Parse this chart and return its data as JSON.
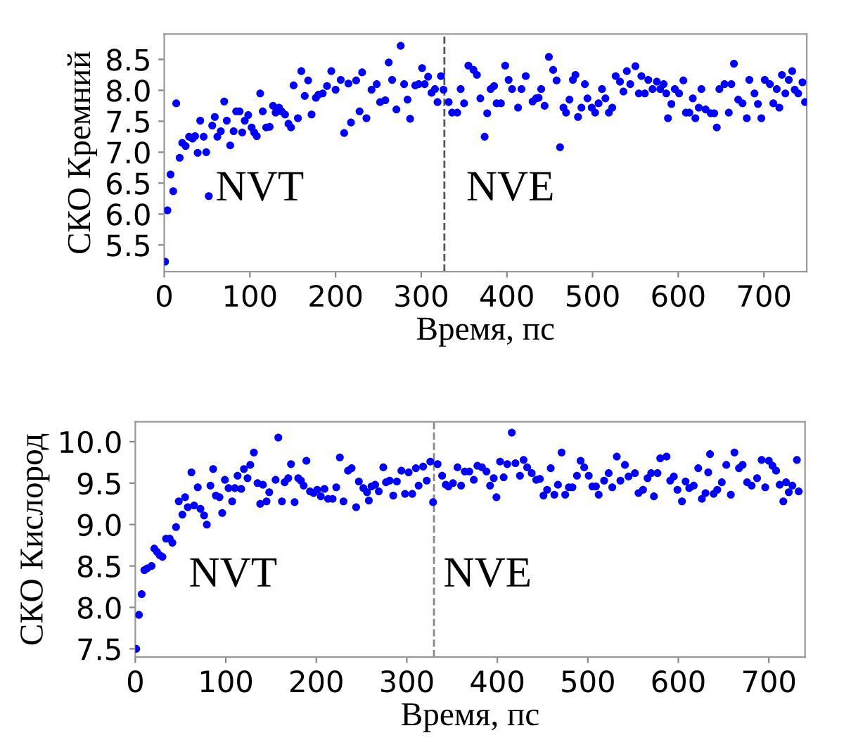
{
  "chart_data": [
    {
      "type": "scatter",
      "xlabel": "Время, пс",
      "ylabel": "СКО Кремний",
      "annotations": [
        "NVT",
        "NVE"
      ],
      "xlim": [
        0,
        750
      ],
      "ylim": [
        5.07,
        8.91
      ],
      "xticks": [
        0,
        100,
        200,
        300,
        400,
        500,
        600,
        700
      ],
      "yticks": [
        5.5,
        {
          "value": 6,
          "label": "6.0"
        },
        6.5,
        {
          "value": 7,
          "label": "7.0"
        },
        7.5,
        {
          "value": 8,
          "label": "8.0"
        },
        8.5
      ],
      "marker": "circle",
      "grid": false,
      "legend": false,
      "ref_lines": [
        {
          "axis": "x",
          "value": 327,
          "color": "#555555",
          "line_style": "dashed"
        }
      ],
      "series": [
        {
          "color": "#0000ff",
          "x": [
            1,
            3.7,
            7.4,
            10.5,
            14,
            18,
            21,
            25,
            29,
            33,
            36,
            39,
            42,
            46,
            49,
            52,
            56,
            59,
            62,
            66,
            70,
            73,
            77,
            81,
            84,
            88,
            91,
            94,
            98,
            102,
            105,
            108,
            112,
            115,
            119,
            123,
            127,
            130,
            134,
            137,
            141,
            145,
            148,
            151,
            156,
            160,
            164,
            168,
            172,
            177,
            180,
            185,
            190,
            195,
            200,
            206,
            210,
            215,
            218,
            224,
            228,
            231,
            236,
            242,
            248,
            252,
            258,
            262,
            266,
            271,
            276,
            280,
            284,
            287,
            293,
            297,
            301,
            304,
            308,
            312,
            316,
            319,
            323,
            326,
            332,
            336,
            342,
            346,
            350,
            355,
            361,
            365,
            369,
            374,
            377,
            381,
            385,
            388,
            393,
            398,
            402,
            406,
            413,
            417,
            422,
            430,
            434,
            437,
            440,
            444,
            449,
            454,
            458,
            462,
            466,
            469,
            473,
            477,
            480,
            483,
            487,
            491,
            494,
            499,
            503,
            507,
            511,
            515,
            519,
            523,
            527,
            532,
            536,
            540,
            544,
            550,
            554,
            557,
            561,
            565,
            570,
            575,
            579,
            583,
            586,
            588,
            592,
            596,
            601,
            606,
            609,
            613,
            617,
            620,
            624,
            627,
            632,
            638,
            642,
            645,
            648,
            654,
            659,
            662,
            665,
            670,
            675,
            680,
            683,
            689,
            693,
            697,
            701,
            707,
            711,
            715,
            718,
            721,
            725,
            729,
            733,
            736,
            740,
            745,
            748
          ],
          "values": [
            5.23,
            6.06,
            6.64,
            6.37,
            7.79,
            6.91,
            7.15,
            7.1,
            7.25,
            7.22,
            7.26,
            6.99,
            7.51,
            7.25,
            7.0,
            6.29,
            7.43,
            7.57,
            7.25,
            7.34,
            7.82,
            7.51,
            7.11,
            7.34,
            7.66,
            7.66,
            7.32,
            7.51,
            7.6,
            7.4,
            7.32,
            7.26,
            7.95,
            7.66,
            7.4,
            7.41,
            7.75,
            7.64,
            7.72,
            7.66,
            7.61,
            7.46,
            7.4,
            8.08,
            7.55,
            8.31,
            7.91,
            8.16,
            7.61,
            7.88,
            7.93,
            7.95,
            8.07,
            8.31,
            8.01,
            8.17,
            7.31,
            8.11,
            7.48,
            8.16,
            7.66,
            8.29,
            7.55,
            8.01,
            8.1,
            7.81,
            7.84,
            8.45,
            8.17,
            7.69,
            8.72,
            8.1,
            7.85,
            7.54,
            8.08,
            8.1,
            8.36,
            8.1,
            8.22,
            7.96,
            8.02,
            7.81,
            8.23,
            8.01,
            7.81,
            7.64,
            7.64,
            8.02,
            7.79,
            8.4,
            8.33,
            8.25,
            7.87,
            7.25,
            7.63,
            8.02,
            8.07,
            7.79,
            7.79,
            8.4,
            8.17,
            8.02,
            7.72,
            8.02,
            8.23,
            7.82,
            7.87,
            7.88,
            8.02,
            7.75,
            8.54,
            8.33,
            8.16,
            7.08,
            7.72,
            7.64,
            7.85,
            8.17,
            8.25,
            7.57,
            7.72,
            8.1,
            7.87,
            7.72,
            7.64,
            7.79,
            8.02,
            7.87,
            7.64,
            7.72,
            8.23,
            8.14,
            7.98,
            8.31,
            8.1,
            8.39,
            7.95,
            8.23,
            7.95,
            8.17,
            8.02,
            8.14,
            8.02,
            8.1,
            7.95,
            7.55,
            7.78,
            8.02,
            7.95,
            8.16,
            7.64,
            7.64,
            7.87,
            7.55,
            7.72,
            8.02,
            7.69,
            7.63,
            7.63,
            7.4,
            8.02,
            8.1,
            7.64,
            8.1,
            8.43,
            7.85,
            7.79,
            7.55,
            8.17,
            7.95,
            7.78,
            7.55,
            8.17,
            8.1,
            7.79,
            8.02,
            7.72,
            8.25,
            7.95,
            8.17,
            8.31,
            8.01,
            7.95,
            8.13,
            7.81
          ]
        }
      ]
    },
    {
      "type": "scatter",
      "xlabel": "Время, пс",
      "ylabel": "СКО Кислород",
      "annotations": [
        "NVT",
        "NVE"
      ],
      "xlim": [
        0,
        740
      ],
      "ylim": [
        7.4,
        10.24
      ],
      "xticks": [
        0,
        100,
        200,
        300,
        400,
        500,
        600,
        700
      ],
      "yticks": [
        7.5,
        {
          "value": 8,
          "label": "8.0"
        },
        8.5,
        {
          "value": 9,
          "label": "9.0"
        },
        9.5,
        {
          "value": 10,
          "label": "10.0"
        }
      ],
      "marker": "circle",
      "grid": false,
      "legend": false,
      "ref_lines": [
        {
          "axis": "x",
          "value": 330,
          "color": "#888888",
          "line_style": "dashed"
        }
      ],
      "series": [
        {
          "color": "#0000ff",
          "x": [
            1,
            4,
            7,
            10,
            13,
            18,
            21,
            24,
            27,
            30,
            34,
            38,
            41,
            45,
            48,
            52,
            55,
            58,
            62,
            65,
            69,
            72,
            76,
            79,
            83,
            86,
            89,
            93,
            96,
            99,
            103,
            107,
            110,
            113,
            117,
            120,
            124,
            127,
            131,
            135,
            138,
            141,
            145,
            148,
            155,
            158,
            162,
            165,
            169,
            172,
            176,
            180,
            183,
            186,
            189,
            193,
            197,
            201,
            205,
            209,
            213,
            218,
            222,
            226,
            230,
            235,
            239,
            244,
            247,
            252,
            256,
            258,
            261,
            265,
            269,
            274,
            277,
            281,
            285,
            289,
            294,
            298,
            302,
            306,
            310,
            313,
            318,
            322,
            326,
            329,
            334,
            339,
            343,
            346,
            351,
            356,
            360,
            364,
            369,
            374,
            378,
            383,
            388,
            392,
            396,
            399,
            403,
            407,
            411,
            416,
            420,
            425,
            429,
            433,
            438,
            443,
            447,
            451,
            455,
            459,
            463,
            467,
            471,
            475,
            479,
            483,
            488,
            492,
            496,
            501,
            505,
            509,
            512,
            518,
            523,
            527,
            532,
            536,
            541,
            545,
            552,
            556,
            561,
            566,
            570,
            573,
            577,
            580,
            587,
            591,
            595,
            599,
            604,
            608,
            612,
            617,
            622,
            626,
            630,
            633,
            635,
            639,
            643,
            648,
            653,
            658,
            662,
            667,
            671,
            676,
            681,
            687,
            692,
            696,
            700,
            704,
            708,
            712,
            716,
            719,
            722,
            726,
            731,
            733
          ],
          "values": [
            7.5,
            7.91,
            8.16,
            8.45,
            8.47,
            8.5,
            8.71,
            8.67,
            8.63,
            8.61,
            8.83,
            8.83,
            8.78,
            8.97,
            9.28,
            9.12,
            9.33,
            9.21,
            9.63,
            9.23,
            9.45,
            9.19,
            9.11,
            9.0,
            9.47,
            9.67,
            9.35,
            9.33,
            9.14,
            9.54,
            9.44,
            9.28,
            9.44,
            9.59,
            9.43,
            9.67,
            9.56,
            9.72,
            9.87,
            9.5,
            9.25,
            9.48,
            9.28,
            9.39,
            9.54,
            10.05,
            9.28,
            9.51,
            9.56,
            9.73,
            9.27,
            9.56,
            9.53,
            9.47,
            9.77,
            9.4,
            9.38,
            9.42,
            9.34,
            9.43,
            9.31,
            9.31,
            9.45,
            9.81,
            9.28,
            9.65,
            9.68,
            9.21,
            9.52,
            9.44,
            9.39,
            9.29,
            9.46,
            9.48,
            9.4,
            9.69,
            9.51,
            9.53,
            9.35,
            9.52,
            9.65,
            9.37,
            9.63,
            9.37,
            9.68,
            9.47,
            9.7,
            9.53,
            9.76,
            9.27,
            9.73,
            9.59,
            9.48,
            9.46,
            9.5,
            9.69,
            9.47,
            9.64,
            9.64,
            9.54,
            9.71,
            9.69,
            9.64,
            9.47,
            9.56,
            9.33,
            9.76,
            9.57,
            9.73,
            10.11,
            9.74,
            9.59,
            9.78,
            9.69,
            9.62,
            9.54,
            9.55,
            9.35,
            9.42,
            9.68,
            9.36,
            9.48,
            9.87,
            9.36,
            9.45,
            9.45,
            9.59,
            9.77,
            9.69,
            9.59,
            9.46,
            9.46,
            9.36,
            9.53,
            9.62,
            9.45,
            9.82,
            9.53,
            9.72,
            9.58,
            9.62,
            9.38,
            9.42,
            9.56,
            9.62,
            9.34,
            9.62,
            9.8,
            9.82,
            9.53,
            9.58,
            9.42,
            9.28,
            9.52,
            9.44,
            9.47,
            9.68,
            9.31,
            9.38,
            9.63,
            9.85,
            9.37,
            9.42,
            9.51,
            9.72,
            9.36,
            9.87,
            9.68,
            9.72,
            9.51,
            9.47,
            9.56,
            9.78,
            9.45,
            9.77,
            9.71,
            9.65,
            9.48,
            9.28,
            9.51,
            9.39,
            9.47,
            9.78,
            9.4
          ]
        }
      ]
    }
  ]
}
